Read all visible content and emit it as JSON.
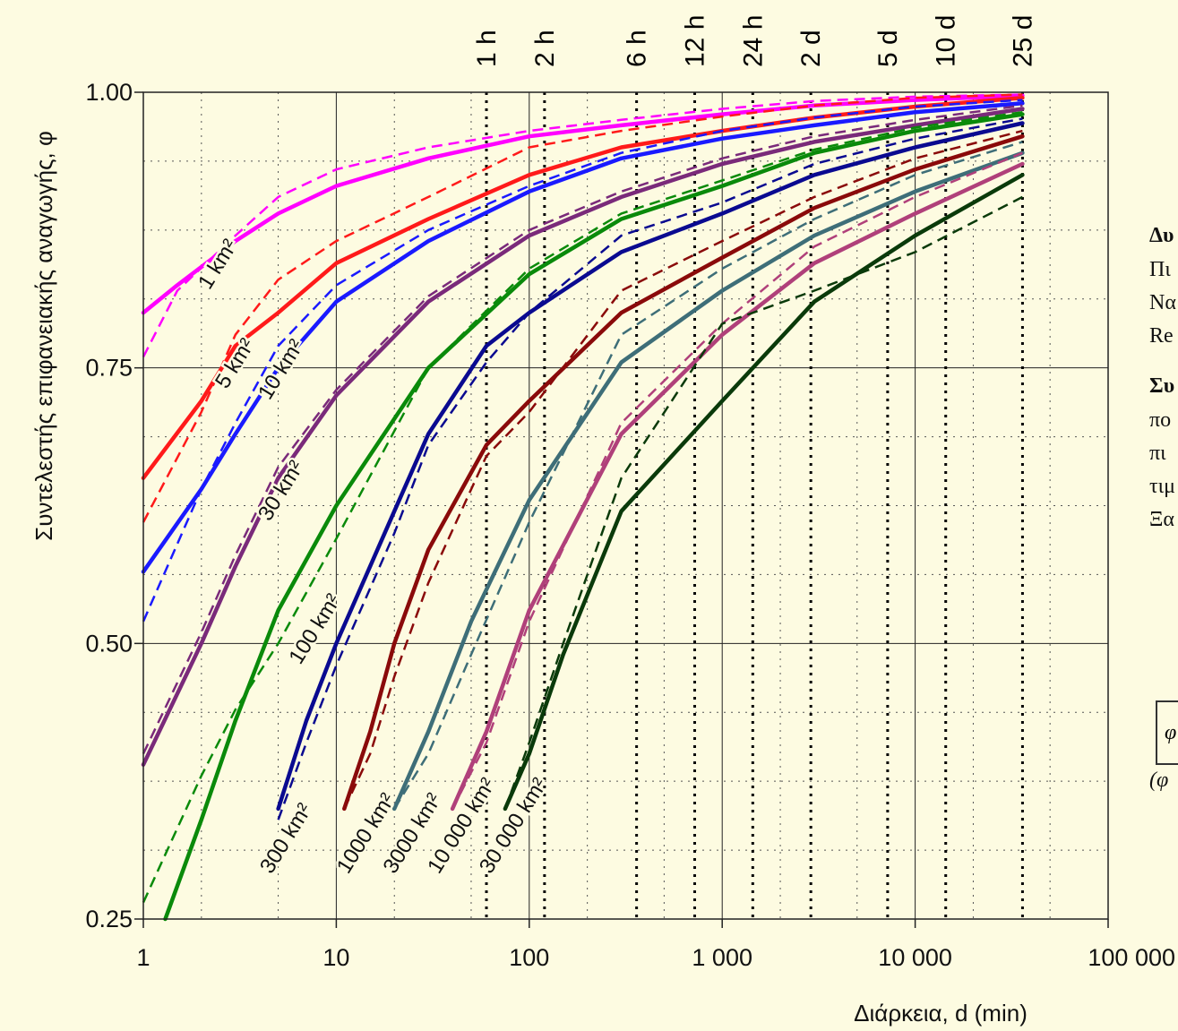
{
  "side_text": {
    "heading_fragment": "Δυ",
    "line1": "Πι",
    "line2": "Να",
    "line3": "Re",
    "heading2_fragment": "Συ",
    "line5": "πο",
    "line6": "πι",
    "line7": "τιμ",
    "line8": "Ξα",
    "formula_symbol": "φ",
    "bottom_fragment": "(φ"
  },
  "colors": {
    "background": "#fdfbe1",
    "1 km2": "#ff00ff",
    "5 km2": "#ff1a1a",
    "10 km2": "#1a1aff",
    "30 km2": "#7a2a7a",
    "100 km2": "#0a8a0a",
    "300 km2": "#0a0a90",
    "1000 km2": "#8a0a0a",
    "3000 km2": "#3e6e78",
    "10000 km2": "#b0407a",
    "30000 km2": "#0a3a0a"
  },
  "chart_data": {
    "type": "line",
    "xlabel": "Διάρκεια, d (min)",
    "ylabel": "Συντελεστής επιφανειακής αναγωγής, φ",
    "x_scale": "log",
    "xlim": [
      1,
      100000
    ],
    "ylim": [
      0.25,
      1.0
    ],
    "x_ticks": [
      1,
      10,
      100,
      1000,
      10000,
      100000
    ],
    "x_tick_labels": [
      "1",
      "10",
      "100",
      "1 000",
      "10 000",
      "100 000"
    ],
    "y_ticks": [
      0.25,
      0.5,
      0.75,
      1.0
    ],
    "y_tick_labels": [
      "0.25",
      "0.50",
      "0.75",
      "1.00"
    ],
    "grid": "major solid, minor dotted",
    "duration_markers": [
      {
        "label": "1 h",
        "x": 60
      },
      {
        "label": "2 h",
        "x": 120
      },
      {
        "label": "6 h",
        "x": 360
      },
      {
        "label": "12 h",
        "x": 720
      },
      {
        "label": "24 h",
        "x": 1440
      },
      {
        "label": "2 d",
        "x": 2880
      },
      {
        "label": "5 d",
        "x": 7200
      },
      {
        "label": "10 d",
        "x": 14400
      },
      {
        "label": "25 d",
        "x": 36000
      }
    ],
    "series": [
      {
        "name": "1 km²",
        "solid": [
          [
            1,
            0.8
          ],
          [
            1.5,
            0.825
          ],
          [
            3,
            0.865
          ],
          [
            5,
            0.89
          ],
          [
            10,
            0.915
          ],
          [
            30,
            0.94
          ],
          [
            100,
            0.96
          ],
          [
            300,
            0.97
          ],
          [
            1000,
            0.98
          ],
          [
            3000,
            0.988
          ],
          [
            10000,
            0.993
          ],
          [
            36000,
            0.997
          ]
        ],
        "dashed": [
          [
            1,
            0.76
          ],
          [
            1.5,
            0.82
          ],
          [
            3,
            0.87
          ],
          [
            5,
            0.905
          ],
          [
            10,
            0.93
          ],
          [
            30,
            0.95
          ],
          [
            100,
            0.965
          ],
          [
            300,
            0.975
          ],
          [
            1000,
            0.985
          ],
          [
            3000,
            0.992
          ],
          [
            10000,
            0.996
          ],
          [
            36000,
            0.998
          ]
        ]
      },
      {
        "name": "5 km²",
        "solid": [
          [
            1,
            0.65
          ],
          [
            2,
            0.72
          ],
          [
            3,
            0.77
          ],
          [
            5,
            0.8
          ],
          [
            10,
            0.845
          ],
          [
            30,
            0.885
          ],
          [
            100,
            0.925
          ],
          [
            300,
            0.95
          ],
          [
            1000,
            0.965
          ],
          [
            3000,
            0.977
          ],
          [
            10000,
            0.987
          ],
          [
            36000,
            0.995
          ]
        ],
        "dashed": [
          [
            1,
            0.61
          ],
          [
            2,
            0.71
          ],
          [
            3,
            0.78
          ],
          [
            5,
            0.83
          ],
          [
            10,
            0.865
          ],
          [
            30,
            0.905
          ],
          [
            100,
            0.95
          ],
          [
            300,
            0.965
          ],
          [
            1000,
            0.978
          ],
          [
            3000,
            0.988
          ],
          [
            10000,
            0.995
          ],
          [
            36000,
            0.998
          ]
        ]
      },
      {
        "name": "10 km²",
        "solid": [
          [
            1,
            0.565
          ],
          [
            2,
            0.64
          ],
          [
            3,
            0.69
          ],
          [
            5,
            0.75
          ],
          [
            10,
            0.81
          ],
          [
            30,
            0.865
          ],
          [
            100,
            0.91
          ],
          [
            300,
            0.94
          ],
          [
            1000,
            0.958
          ],
          [
            3000,
            0.97
          ],
          [
            10000,
            0.982
          ],
          [
            36000,
            0.99
          ]
        ],
        "dashed": [
          [
            1,
            0.52
          ],
          [
            2,
            0.64
          ],
          [
            3,
            0.7
          ],
          [
            5,
            0.77
          ],
          [
            10,
            0.825
          ],
          [
            30,
            0.875
          ],
          [
            100,
            0.915
          ],
          [
            300,
            0.945
          ],
          [
            1000,
            0.965
          ],
          [
            3000,
            0.977
          ],
          [
            10000,
            0.987
          ],
          [
            36000,
            0.993
          ]
        ]
      },
      {
        "name": "30 km²",
        "solid": [
          [
            1,
            0.39
          ],
          [
            2,
            0.5
          ],
          [
            3,
            0.57
          ],
          [
            5,
            0.65
          ],
          [
            10,
            0.725
          ],
          [
            30,
            0.81
          ],
          [
            100,
            0.87
          ],
          [
            300,
            0.905
          ],
          [
            1000,
            0.935
          ],
          [
            3000,
            0.955
          ],
          [
            10000,
            0.97
          ],
          [
            36000,
            0.985
          ]
        ],
        "dashed": [
          [
            1,
            0.4
          ],
          [
            2,
            0.51
          ],
          [
            3,
            0.58
          ],
          [
            5,
            0.66
          ],
          [
            10,
            0.73
          ],
          [
            30,
            0.815
          ],
          [
            100,
            0.875
          ],
          [
            300,
            0.91
          ],
          [
            1000,
            0.94
          ],
          [
            3000,
            0.96
          ],
          [
            10000,
            0.975
          ],
          [
            36000,
            0.988
          ]
        ]
      },
      {
        "name": "100 km²",
        "solid": [
          [
            1.3,
            0.25
          ],
          [
            2,
            0.34
          ],
          [
            3,
            0.43
          ],
          [
            5,
            0.53
          ],
          [
            10,
            0.625
          ],
          [
            30,
            0.75
          ],
          [
            100,
            0.835
          ],
          [
            300,
            0.885
          ],
          [
            1000,
            0.915
          ],
          [
            3000,
            0.945
          ],
          [
            10000,
            0.965
          ],
          [
            36000,
            0.98
          ]
        ],
        "dashed": [
          [
            1,
            0.265
          ],
          [
            2,
            0.38
          ],
          [
            3,
            0.44
          ],
          [
            5,
            0.5
          ],
          [
            10,
            0.595
          ],
          [
            30,
            0.75
          ],
          [
            100,
            0.84
          ],
          [
            300,
            0.89
          ],
          [
            1000,
            0.92
          ],
          [
            3000,
            0.948
          ],
          [
            10000,
            0.968
          ],
          [
            36000,
            0.982
          ]
        ]
      },
      {
        "name": "300 km²",
        "solid": [
          [
            5,
            0.35
          ],
          [
            7,
            0.43
          ],
          [
            10,
            0.5
          ],
          [
            20,
            0.62
          ],
          [
            30,
            0.69
          ],
          [
            60,
            0.77
          ],
          [
            100,
            0.8
          ],
          [
            300,
            0.855
          ],
          [
            1000,
            0.89
          ],
          [
            3000,
            0.925
          ],
          [
            10000,
            0.95
          ],
          [
            36000,
            0.972
          ]
        ],
        "dashed": [
          [
            5,
            0.34
          ],
          [
            7,
            0.41
          ],
          [
            10,
            0.48
          ],
          [
            20,
            0.6
          ],
          [
            30,
            0.68
          ],
          [
            60,
            0.755
          ],
          [
            100,
            0.8
          ],
          [
            300,
            0.87
          ],
          [
            1000,
            0.9
          ],
          [
            3000,
            0.935
          ],
          [
            10000,
            0.958
          ],
          [
            36000,
            0.976
          ]
        ]
      },
      {
        "name": "1000 km²",
        "solid": [
          [
            11,
            0.35
          ],
          [
            15,
            0.42
          ],
          [
            20,
            0.5
          ],
          [
            30,
            0.585
          ],
          [
            60,
            0.68
          ],
          [
            100,
            0.72
          ],
          [
            300,
            0.8
          ],
          [
            1000,
            0.85
          ],
          [
            3000,
            0.895
          ],
          [
            10000,
            0.93
          ],
          [
            36000,
            0.96
          ]
        ],
        "dashed": [
          [
            11,
            0.35
          ],
          [
            15,
            0.4
          ],
          [
            20,
            0.47
          ],
          [
            30,
            0.555
          ],
          [
            60,
            0.67
          ],
          [
            100,
            0.71
          ],
          [
            300,
            0.82
          ],
          [
            1000,
            0.865
          ],
          [
            3000,
            0.905
          ],
          [
            10000,
            0.94
          ],
          [
            36000,
            0.965
          ]
        ]
      },
      {
        "name": "3000 km²",
        "solid": [
          [
            20,
            0.35
          ],
          [
            30,
            0.42
          ],
          [
            50,
            0.52
          ],
          [
            100,
            0.63
          ],
          [
            300,
            0.755
          ],
          [
            1000,
            0.82
          ],
          [
            3000,
            0.87
          ],
          [
            10000,
            0.91
          ],
          [
            36000,
            0.945
          ]
        ],
        "dashed": [
          [
            20,
            0.35
          ],
          [
            30,
            0.4
          ],
          [
            50,
            0.49
          ],
          [
            100,
            0.61
          ],
          [
            300,
            0.78
          ],
          [
            1000,
            0.84
          ],
          [
            3000,
            0.885
          ],
          [
            10000,
            0.925
          ],
          [
            36000,
            0.955
          ]
        ]
      },
      {
        "name": "10 000 km²",
        "solid": [
          [
            40,
            0.35
          ],
          [
            60,
            0.42
          ],
          [
            100,
            0.53
          ],
          [
            300,
            0.69
          ],
          [
            1000,
            0.78
          ],
          [
            3000,
            0.845
          ],
          [
            10000,
            0.89
          ],
          [
            36000,
            0.935
          ]
        ],
        "dashed": [
          [
            40,
            0.35
          ],
          [
            60,
            0.41
          ],
          [
            100,
            0.52
          ],
          [
            300,
            0.7
          ],
          [
            1000,
            0.79
          ],
          [
            3000,
            0.86
          ],
          [
            10000,
            0.905
          ],
          [
            36000,
            0.945
          ]
        ]
      },
      {
        "name": "30 000 km²",
        "solid": [
          [
            75,
            0.35
          ],
          [
            100,
            0.4
          ],
          [
            150,
            0.49
          ],
          [
            300,
            0.62
          ],
          [
            1000,
            0.72
          ],
          [
            3000,
            0.81
          ],
          [
            10000,
            0.87
          ],
          [
            36000,
            0.925
          ]
        ],
        "dashed": [
          [
            75,
            0.35
          ],
          [
            100,
            0.41
          ],
          [
            150,
            0.5
          ],
          [
            300,
            0.65
          ],
          [
            1000,
            0.79
          ],
          [
            3000,
            0.82
          ],
          [
            10000,
            0.855
          ],
          [
            36000,
            0.905
          ]
        ]
      }
    ],
    "series_labels": [
      {
        "text": "1 km²",
        "x": 2.2,
        "y": 0.82
      },
      {
        "text": "5 km²",
        "x": 2.7,
        "y": 0.73
      },
      {
        "text": "10 km²",
        "x": 4.5,
        "y": 0.72
      },
      {
        "text": "30 km²",
        "x": 4.5,
        "y": 0.61
      },
      {
        "text": "100 km²",
        "x": 6.5,
        "y": 0.48
      },
      {
        "text": "300 km²",
        "x": 4.6,
        "y": 0.29
      },
      {
        "text": "1000 km²",
        "x": 11.5,
        "y": 0.29
      },
      {
        "text": "3000 km²",
        "x": 20,
        "y": 0.29
      },
      {
        "text": "10 000 km²",
        "x": 34,
        "y": 0.29
      },
      {
        "text": "30 000 km²",
        "x": 63,
        "y": 0.29
      }
    ]
  }
}
